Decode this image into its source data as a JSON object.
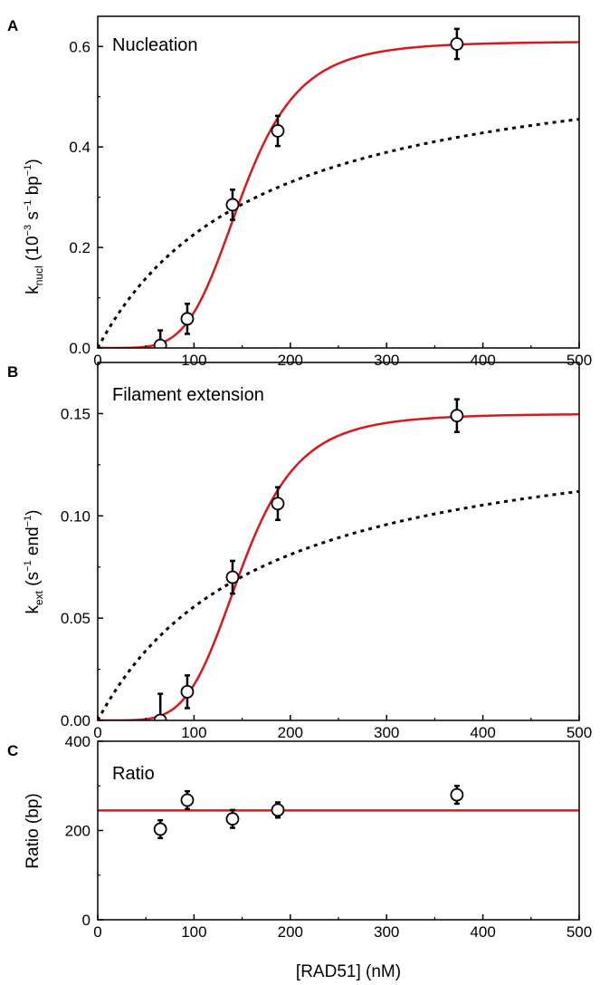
{
  "colors": {
    "fit": "#d7191c",
    "dashed": "#000000",
    "marker": "#000000"
  },
  "xlabel": "[RAD51] (nM)",
  "chart_data": [
    {
      "id": "A",
      "type": "scatter",
      "panel_letter": "A",
      "title": "Nucleation",
      "ylabel": {
        "main": "k",
        "sub": "nucl",
        "unit_open": " (10",
        "exp1": "−3",
        "unit_mid1": " s",
        "exp2": "−1",
        "unit_mid2": " bp",
        "exp3": "−1",
        "unit_close": ")"
      },
      "xlim": [
        0,
        500
      ],
      "ylim": [
        0,
        0.66
      ],
      "xticks": [
        0,
        100,
        200,
        300,
        400,
        500
      ],
      "xtick_labels": [
        "0",
        "100",
        "200",
        "300",
        "400",
        "500"
      ],
      "yticks": [
        0,
        0.2,
        0.4,
        0.6
      ],
      "ytick_labels": [
        "0.0",
        "0.2",
        "0.4",
        "0.6"
      ],
      "points": [
        {
          "x": 65,
          "y": 0.005,
          "err": 0.03
        },
        {
          "x": 93,
          "y": 0.058,
          "err": 0.03
        },
        {
          "x": 140,
          "y": 0.285,
          "err": 0.03
        },
        {
          "x": 187,
          "y": 0.432,
          "err": 0.03
        },
        {
          "x": 373,
          "y": 0.605,
          "err": 0.03
        }
      ],
      "fit_hill": {
        "vmax": 0.61,
        "k": 150,
        "n": 5
      },
      "fit_dashed": {
        "vmax": 0.61,
        "k": 170,
        "n": 1
      }
    },
    {
      "id": "B",
      "type": "scatter",
      "panel_letter": "B",
      "title": "Filament extension",
      "ylabel": {
        "main": "k",
        "sub": "ext",
        "unit_open": " (s",
        "exp1": "−1",
        "unit_mid1": " end",
        "exp2": "−1",
        "unit_mid2": "",
        "exp3": "",
        "unit_close": ")"
      },
      "xlim": [
        0,
        500
      ],
      "ylim": [
        0,
        0.175
      ],
      "xticks": [
        0,
        100,
        200,
        300,
        400,
        500
      ],
      "xtick_labels": [
        "0",
        "100",
        "200",
        "300",
        "400",
        "500"
      ],
      "yticks": [
        0,
        0.05,
        0.1,
        0.15
      ],
      "ytick_labels": [
        "0.00",
        "0.05",
        "0.10",
        "0.15"
      ],
      "points": [
        {
          "x": 65,
          "y": 0.0,
          "err": 0.013
        },
        {
          "x": 93,
          "y": 0.014,
          "err": 0.008
        },
        {
          "x": 140,
          "y": 0.07,
          "err": 0.008
        },
        {
          "x": 187,
          "y": 0.106,
          "err": 0.008
        },
        {
          "x": 373,
          "y": 0.149,
          "err": 0.008
        }
      ],
      "fit_hill": {
        "vmax": 0.15,
        "k": 150,
        "n": 5
      },
      "fit_dashed": {
        "vmax": 0.15,
        "k": 170,
        "n": 1
      }
    },
    {
      "id": "C",
      "type": "scatter",
      "panel_letter": "C",
      "title": "Ratio",
      "ylabel": {
        "main": "Ratio (bp)",
        "sub": "",
        "unit_open": "",
        "exp1": "",
        "unit_mid1": "",
        "exp2": "",
        "unit_mid2": "",
        "exp3": "",
        "unit_close": ""
      },
      "xlim": [
        0,
        500
      ],
      "ylim": [
        0,
        400
      ],
      "xticks": [
        0,
        100,
        200,
        300,
        400,
        500
      ],
      "xtick_labels": [
        "0",
        "100",
        "200",
        "300",
        "400",
        "500"
      ],
      "yticks": [
        0,
        200,
        400
      ],
      "ytick_labels": [
        "0",
        "200",
        "400"
      ],
      "points": [
        {
          "x": 65,
          "y": 203,
          "err": 20
        },
        {
          "x": 93,
          "y": 268,
          "err": 20
        },
        {
          "x": 140,
          "y": 226,
          "err": 20
        },
        {
          "x": 187,
          "y": 246,
          "err": 17
        },
        {
          "x": 373,
          "y": 280,
          "err": 20
        }
      ],
      "fit_constant": 245
    }
  ]
}
